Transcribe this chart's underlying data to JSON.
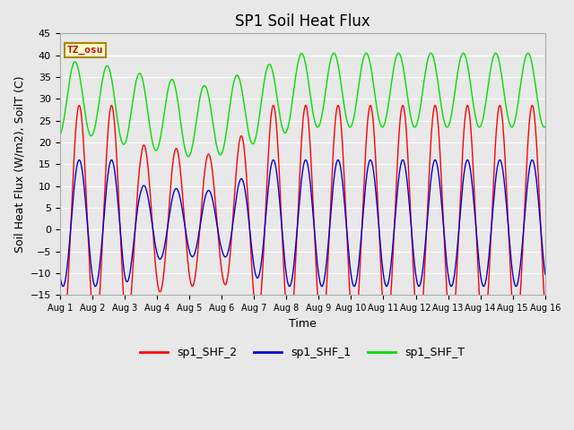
{
  "title": "SP1 Soil Heat Flux",
  "xlabel": "Time",
  "ylabel": "Soil Heat Flux (W/m2), SoilT (C)",
  "ylim": [
    -15,
    45
  ],
  "xlim_days": [
    0,
    15
  ],
  "yticks": [
    -15,
    -10,
    -5,
    0,
    5,
    10,
    15,
    20,
    25,
    30,
    35,
    40,
    45
  ],
  "xtick_labels": [
    "Aug 1",
    "Aug 2",
    "Aug 3",
    "Aug 4",
    "Aug 5",
    "Aug 6",
    "Aug 7",
    "Aug 8",
    "Aug 9",
    "Aug 10",
    "Aug 11",
    "Aug 12",
    "Aug 13",
    "Aug 14",
    "Aug 15",
    "Aug 16"
  ],
  "colors": {
    "shf2": "#ff0000",
    "shf1": "#0000dd",
    "shfT": "#00dd00"
  },
  "legend_labels": [
    "sp1_SHF_2",
    "sp1_SHF_1",
    "sp1_SHF_T"
  ],
  "annotation_text": "TZ_osu",
  "annotation_color": "#cc0000",
  "annotation_bg": "#ffffcc",
  "annotation_edge": "#aa8800",
  "plot_bg": "#e8e8e8",
  "grid_color": "#ffffff",
  "fig_bg": "#e8e8e8",
  "title_fontsize": 12,
  "label_fontsize": 9,
  "tick_fontsize": 8
}
